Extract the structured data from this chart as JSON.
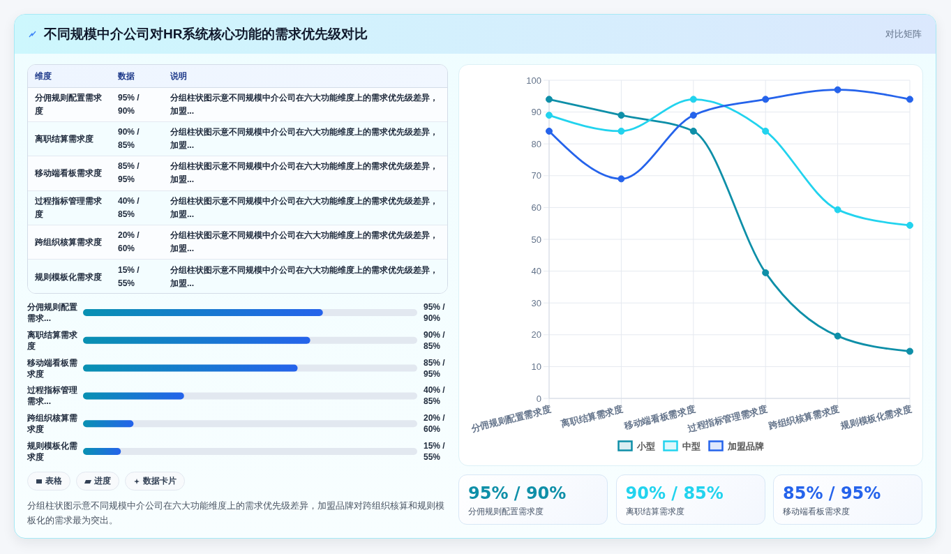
{
  "chart_data": [
    {
      "type": "other",
      "title": "不同规模中介公司对HR系统核心功能的需求优先级对比",
      "annotations": [
        "对比矩阵"
      ]
    },
    {
      "type": "other",
      "categories": [
        "分佣规则配置需求度",
        "离职结算需求度",
        "移动端看板需求度",
        "过程指标管理需求度",
        "跨组织核算需求度",
        "规则模板化需求度"
      ],
      "value_labels": [
        "95% / 90%",
        "90% / 85%",
        "85% / 95%",
        "40% / 85%",
        "20% / 60%",
        "15% / 55%"
      ],
      "annotations": [
        "维度",
        "数据",
        "说明",
        "分组柱状图示意不同规模中介公司在六大功能维度上的需求优先级差异，加盟...",
        "分组柱状图示意不同规模中介公司在六大功能维度上的需求优先级差异，加盟...",
        "分组柱状图示意不同规模中介公司在六大功能维度上的需求优先级差异，加盟...",
        "分组柱状图示意不同规模中介公司在六大功能维度上的需求优先级差异，加盟...",
        "分组柱状图示意不同规模中介公司在六大功能维度上的需求优先级差异，加盟...",
        "分组柱状图示意不同规模中介公司在六大功能维度上的需求优先级差异，加盟..."
      ]
    },
    {
      "type": "bar",
      "orientation": "horizontal",
      "categories": [
        "分佣规则配置需求...",
        "离职结算需求度",
        "移动端看板需求度",
        "过程指标管理需求...",
        "跨组织核算需求度",
        "规则模板化需求度"
      ],
      "values": [
        95,
        90,
        85,
        40,
        20,
        15
      ],
      "value_labels": [
        "95% / 90%",
        "90% / 85%",
        "85% / 95%",
        "40% / 85%",
        "20% / 60%",
        "15% / 55%"
      ],
      "color": "#2563eb"
    },
    {
      "type": "other",
      "annotations": [
        "表格",
        "进度",
        "数据卡片",
        "分组柱状图示意不同规模中介公司在六大功能维度上的需求优先级差异，加盟品牌对跨组织核算和规则模板化的需求最为突出。"
      ]
    },
    {
      "type": "line",
      "categories": [
        "分佣规则配置需求度",
        "离职结算需求度",
        "移动端看板需求度",
        "过程指标管理需求度",
        "跨组织核算需求度",
        "规则模板化需求度"
      ],
      "series": [
        {
          "name": "小型",
          "color": "#0e8fa8",
          "values": [
            94,
            89,
            84,
            39.5,
            19.6,
            14.8
          ]
        },
        {
          "name": "中型",
          "color": "#22d3ee",
          "values": [
            89,
            84,
            94,
            84,
            59.3,
            54.4
          ]
        },
        {
          "name": "加盟品牌",
          "color": "#2563eb",
          "values": [
            84,
            69,
            89,
            94,
            97,
            94
          ]
        }
      ],
      "ylim": [
        0,
        100
      ],
      "yticks": [
        0,
        10,
        20,
        30,
        40,
        50,
        60,
        70,
        80,
        90,
        100
      ],
      "grid": true,
      "legend": "bottom",
      "marker": "circle"
    },
    {
      "type": "other",
      "title": "95% / 90%",
      "subtitle": "分佣规则配置需求度",
      "color": "#0e8fa8"
    },
    {
      "type": "other",
      "title": "90% / 85%",
      "subtitle": "离职结算需求度",
      "color": "#22d3ee"
    },
    {
      "type": "other",
      "title": "85% / 95%",
      "subtitle": "移动端看板需求度",
      "color": "#2563eb"
    }
  ]
}
